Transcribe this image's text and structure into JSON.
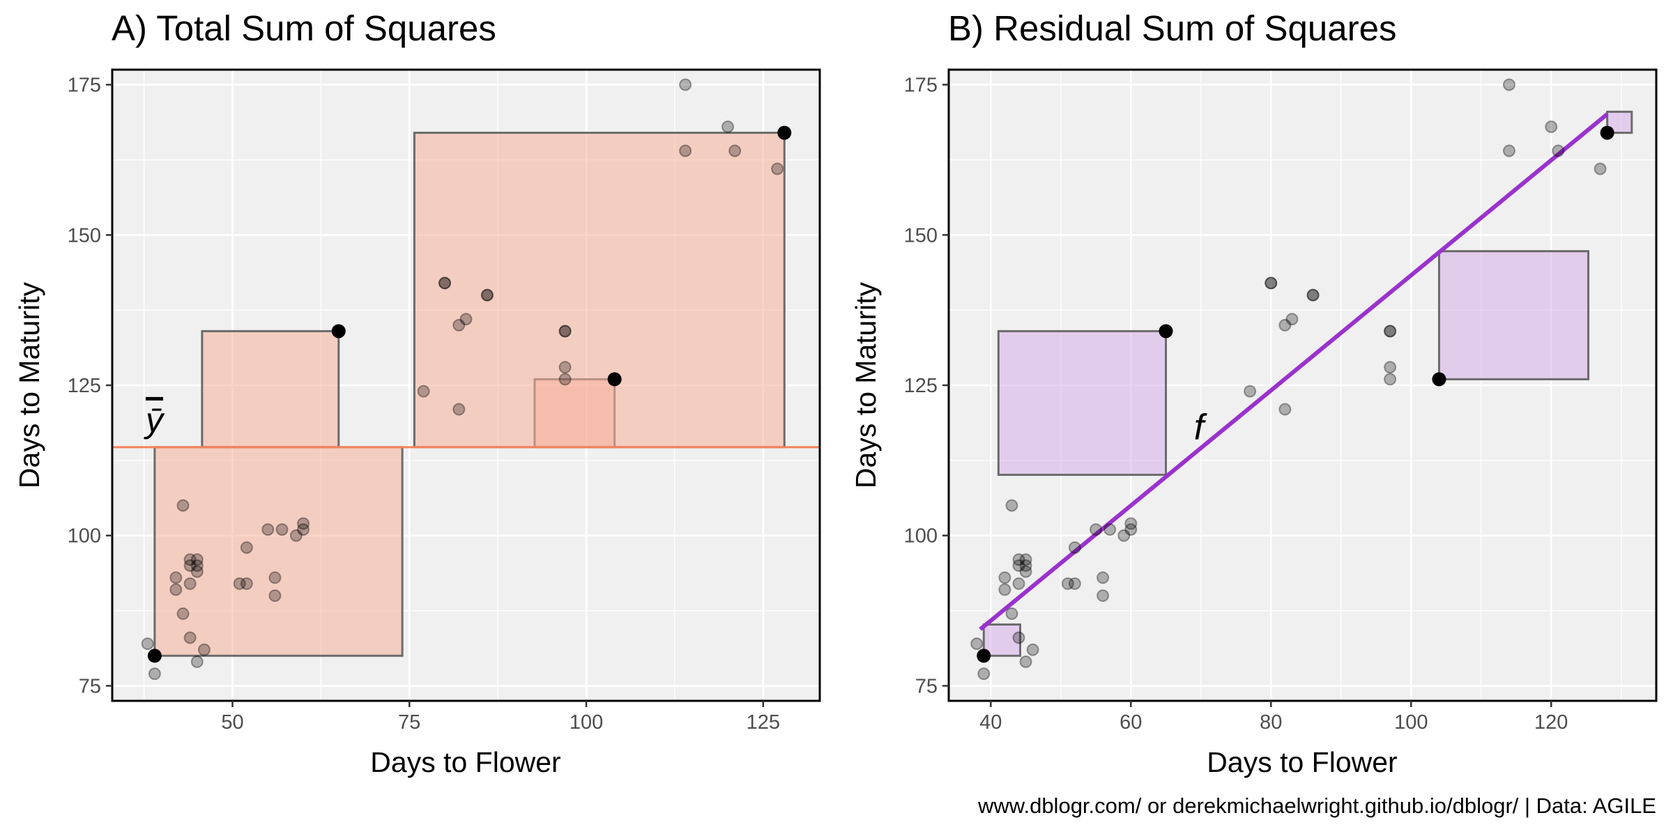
{
  "chart_data": [
    {
      "type": "scatter",
      "panel": "A",
      "title": "A) Total Sum of Squares",
      "xlabel": "Days to Flower",
      "ylabel": "Days to Maturity",
      "xlim": [
        33,
        133
      ],
      "ylim": [
        72.5,
        177.5
      ],
      "xticks": [
        50,
        75,
        100,
        125
      ],
      "xminor": [
        37.5,
        62.5,
        87.5,
        112.5
      ],
      "yticks": [
        75,
        100,
        125,
        150,
        175
      ],
      "yminor": [
        87.5,
        112.5,
        137.5,
        162.5
      ],
      "mean_y": 114.7,
      "mean_label": "ȳ",
      "mean_color": "#f4825a",
      "square_fill": "#f7b09a",
      "square_stroke": "#6b6b6b",
      "highlight_points": [
        [
          39,
          80
        ],
        [
          65,
          134
        ],
        [
          104,
          126
        ],
        [
          128,
          167
        ]
      ],
      "squares": [
        {
          "x": [
            39,
            74
          ],
          "y": [
            80,
            114.7
          ]
        },
        {
          "x": [
            45.7,
            65
          ],
          "y": [
            114.7,
            134
          ]
        },
        {
          "x": [
            92.7,
            104
          ],
          "y": [
            114.7,
            126
          ]
        },
        {
          "x": [
            75.7,
            128
          ],
          "y": [
            114.7,
            167
          ]
        }
      ]
    },
    {
      "type": "scatter",
      "panel": "B",
      "title": "B) Residual Sum of Squares",
      "xlabel": "Days to Flower",
      "ylabel": "Days to Maturity",
      "xlim": [
        34,
        135
      ],
      "ylim": [
        72.5,
        177.5
      ],
      "xticks": [
        40,
        60,
        80,
        100,
        120
      ],
      "xminor": [
        50,
        70,
        90,
        110,
        130
      ],
      "yticks": [
        75,
        100,
        125,
        150,
        175
      ],
      "yminor": [
        87.5,
        112.5,
        137.5,
        162.5
      ],
      "fit_line": {
        "x": [
          38.5,
          128
        ],
        "y": [
          84.4,
          170.1
        ],
        "label": "f",
        "color": "#9a32cd"
      },
      "square_fill": "#d7aee9",
      "square_stroke": "#6b6b6b",
      "highlight_points": [
        [
          39,
          80
        ],
        [
          65,
          134
        ],
        [
          104,
          126
        ],
        [
          128,
          167
        ]
      ],
      "squares": [
        {
          "x": [
            39,
            44.2
          ],
          "y": [
            80,
            85.2
          ]
        },
        {
          "x": [
            41.1,
            65
          ],
          "y": [
            110.1,
            134
          ]
        },
        {
          "x": [
            104,
            125.3
          ],
          "y": [
            126,
            147.3
          ]
        },
        {
          "x": [
            128,
            131.5
          ],
          "y": [
            167,
            170.5
          ]
        }
      ]
    }
  ],
  "points": [
    [
      38,
      82
    ],
    [
      39,
      77
    ],
    [
      42,
      93
    ],
    [
      42,
      91
    ],
    [
      43,
      105
    ],
    [
      43,
      87
    ],
    [
      44,
      96
    ],
    [
      44,
      95
    ],
    [
      44,
      92
    ],
    [
      44,
      83
    ],
    [
      45,
      96
    ],
    [
      45,
      95
    ],
    [
      45,
      94
    ],
    [
      45,
      79
    ],
    [
      46,
      81
    ],
    [
      51,
      92
    ],
    [
      52,
      98
    ],
    [
      52,
      92
    ],
    [
      55,
      101
    ],
    [
      56,
      93
    ],
    [
      56,
      90
    ],
    [
      57,
      101
    ],
    [
      59,
      100
    ],
    [
      60,
      102
    ],
    [
      60,
      101
    ],
    [
      77,
      124
    ],
    [
      80,
      142
    ],
    [
      80,
      142
    ],
    [
      82,
      135
    ],
    [
      82,
      121
    ],
    [
      83,
      136
    ],
    [
      86,
      140
    ],
    [
      86,
      140
    ],
    [
      97,
      134
    ],
    [
      97,
      134
    ],
    [
      97,
      128
    ],
    [
      97,
      126
    ],
    [
      114,
      175
    ],
    [
      114,
      164
    ],
    [
      120,
      168
    ],
    [
      121,
      164
    ],
    [
      127,
      161
    ]
  ],
  "caption": "www.dblogr.com/ or derekmichaelwright.github.io/dblogr/ | Data: AGILE"
}
